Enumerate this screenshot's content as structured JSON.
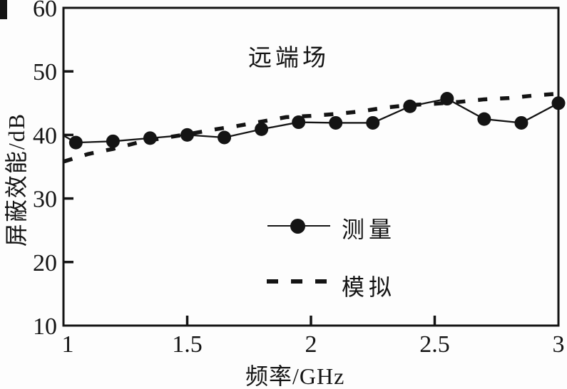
{
  "chart_data": {
    "type": "line",
    "annotation": "远端场",
    "xlabel": "频率/GHz",
    "ylabel": "屏蔽效能/dB",
    "xlim": [
      1,
      3
    ],
    "ylim": [
      10,
      60
    ],
    "x_ticks": [
      1,
      1.5,
      2,
      2.5,
      3
    ],
    "x_tick_labels": [
      "1",
      "1.5",
      "2",
      "2.5",
      "3"
    ],
    "y_ticks": [
      10,
      20,
      30,
      40,
      50,
      60
    ],
    "y_tick_labels": [
      "10",
      "20",
      "30",
      "40",
      "50",
      "60"
    ],
    "grid": false,
    "legend_position": "inside-lower-center",
    "series": [
      {
        "name": "测量",
        "style": "solid-line-circle-markers",
        "color": "#141414",
        "line_start": [
          1.0,
          39.9
        ],
        "points": [
          [
            1.05,
            38.8
          ],
          [
            1.2,
            39.0
          ],
          [
            1.35,
            39.5
          ],
          [
            1.5,
            40.0
          ],
          [
            1.65,
            39.6
          ],
          [
            1.8,
            40.9
          ],
          [
            1.95,
            42.0
          ],
          [
            2.1,
            41.9
          ],
          [
            2.25,
            41.9
          ],
          [
            2.4,
            44.5
          ],
          [
            2.55,
            45.7
          ],
          [
            2.7,
            42.5
          ],
          [
            2.85,
            41.9
          ],
          [
            3.0,
            45.0
          ]
        ]
      },
      {
        "name": "模拟",
        "style": "dashed-line",
        "color": "#141414",
        "points": [
          [
            1.0,
            35.8
          ],
          [
            1.1,
            37.0
          ],
          [
            1.2,
            37.8
          ],
          [
            1.3,
            38.8
          ],
          [
            1.4,
            39.5
          ],
          [
            1.5,
            40.1
          ],
          [
            1.6,
            40.8
          ],
          [
            1.7,
            41.4
          ],
          [
            1.8,
            42.1
          ],
          [
            1.9,
            42.8
          ],
          [
            2.0,
            43.0
          ],
          [
            2.1,
            43.3
          ],
          [
            2.2,
            43.7
          ],
          [
            2.3,
            44.3
          ],
          [
            2.4,
            44.7
          ],
          [
            2.5,
            44.9
          ],
          [
            2.6,
            45.2
          ],
          [
            2.7,
            45.6
          ],
          [
            2.8,
            45.8
          ],
          [
            2.9,
            46.2
          ],
          [
            3.0,
            46.5
          ]
        ]
      }
    ],
    "legend": [
      {
        "label": "测量",
        "marker": "circle-on-line"
      },
      {
        "label": "模拟",
        "marker": "dashed-line"
      }
    ],
    "colors": {
      "ink": "#141414",
      "background": "#fdfdfd"
    }
  }
}
